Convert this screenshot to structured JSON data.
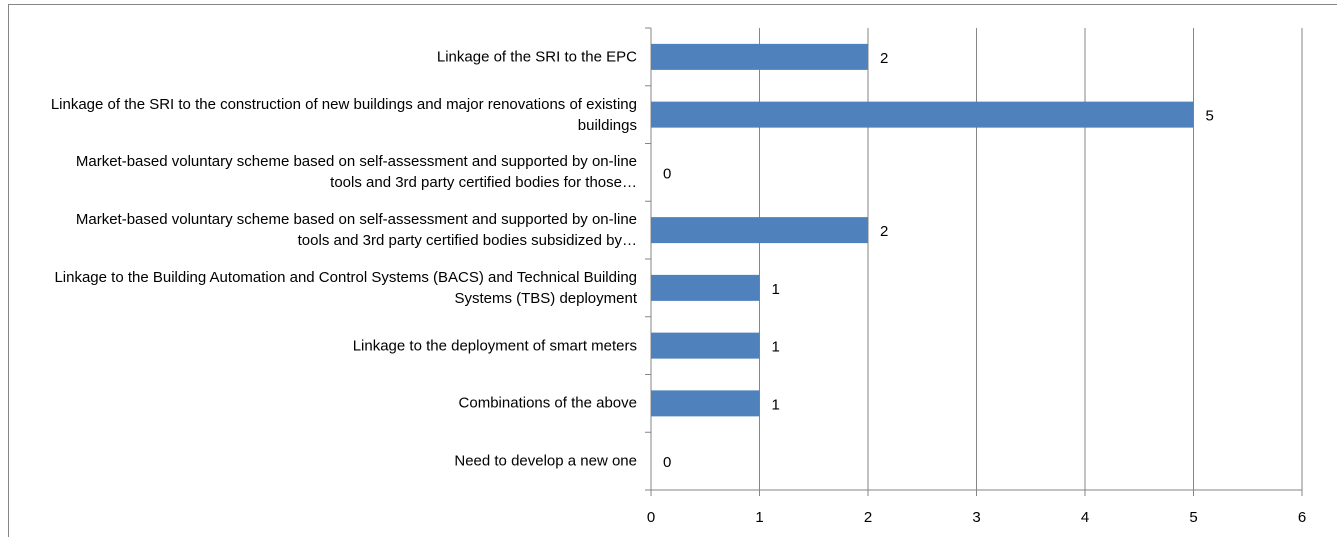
{
  "chart_data": {
    "type": "bar",
    "orientation": "horizontal",
    "categories": [
      "Linkage of the SRI to the EPC",
      "Linkage of the SRI to the construction of new buildings and major renovations of existing buildings",
      "Market-based voluntary scheme based on self-assessment and supported by on-line tools and 3rd party certified bodies for those…",
      "Market-based voluntary scheme based on self-assessment and supported by on-line tools and 3rd party certified bodies subsidized by…",
      "Linkage to the Building Automation and Control Systems (BACS) and Technical Building Systems (TBS) deployment",
      "Linkage to the deployment of smart meters",
      "Combinations of the above",
      "Need to develop a new one"
    ],
    "values": [
      2,
      5,
      0,
      2,
      1,
      1,
      1,
      0
    ],
    "color": "#4f81bd",
    "xlim": [
      0,
      6
    ],
    "xticks": [
      0,
      1,
      2,
      3,
      4,
      5,
      6
    ],
    "grid": true
  }
}
